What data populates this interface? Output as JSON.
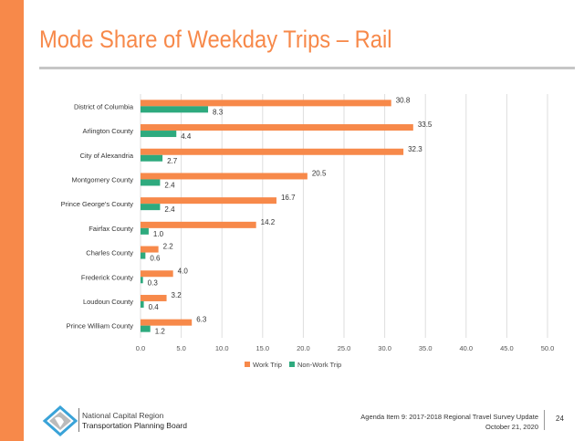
{
  "slide": {
    "title": "Mode Share of Weekday Trips – Rail",
    "org_line1": "National Capital Region",
    "org_line2": "Transportation Planning Board",
    "agenda": "Agenda Item 9: 2017-2018 Regional Travel Survey Update",
    "date": "October 21, 2020",
    "page": "24",
    "accent": "#F7894A"
  },
  "chart_data": {
    "type": "bar",
    "orientation": "horizontal",
    "categories": [
      "District of Columbia",
      "Arlington County",
      "City of Alexandria",
      "Montgomery County",
      "Prince George's County",
      "Fairfax County",
      "Charles County",
      "Frederick County",
      "Loudoun County",
      "Prince William County"
    ],
    "series": [
      {
        "name": "Work Trip",
        "color": "#F7894A",
        "values": [
          30.8,
          33.5,
          32.3,
          20.5,
          16.7,
          14.2,
          2.2,
          4.0,
          3.2,
          6.3
        ]
      },
      {
        "name": "Non-Work Trip",
        "color": "#2EAA7E",
        "values": [
          8.3,
          4.4,
          2.7,
          2.4,
          2.4,
          1.0,
          0.6,
          0.3,
          0.4,
          1.2
        ]
      }
    ],
    "xlim": [
      0,
      50
    ],
    "xticks": [
      "0.0",
      "5.0",
      "10.0",
      "15.0",
      "20.0",
      "25.0",
      "30.0",
      "35.0",
      "40.0",
      "45.0",
      "50.0"
    ],
    "grid": true,
    "legend": "bottom"
  }
}
